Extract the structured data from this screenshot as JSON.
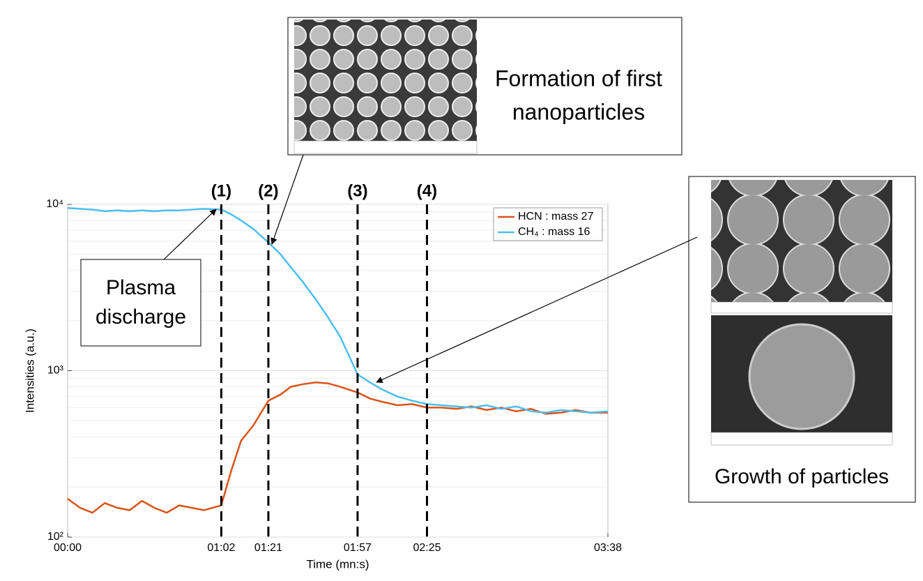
{
  "chart_data": {
    "type": "line",
    "ylog": true,
    "grid": true,
    "legend": "upper right",
    "xlabel": "Time (mn:s)",
    "ylabel": "Intensities (a.u.)",
    "xlim": [
      0,
      218
    ],
    "ylim": [
      100,
      10000
    ],
    "xticks": [
      {
        "value": 0,
        "label": "00:00"
      },
      {
        "value": 62,
        "label": "01:02"
      },
      {
        "value": 81,
        "label": "01:21"
      },
      {
        "value": 117,
        "label": "01:57"
      },
      {
        "value": 145,
        "label": "02:25"
      },
      {
        "value": 218,
        "label": "03:38"
      }
    ],
    "yticks": [
      {
        "value": 100,
        "label": "10²"
      },
      {
        "value": 1000,
        "label": "10³"
      },
      {
        "value": 10000,
        "label": "10⁴"
      }
    ],
    "x": [
      0,
      5,
      10,
      15,
      20,
      25,
      30,
      35,
      40,
      45,
      50,
      55,
      62,
      66,
      70,
      75,
      81,
      86,
      90,
      95,
      100,
      105,
      110,
      117,
      122,
      127,
      133,
      139,
      145,
      151,
      157,
      163,
      169,
      175,
      181,
      187,
      193,
      199,
      205,
      211,
      218
    ],
    "series": [
      {
        "name": "HCN : mass 27",
        "color": "#d95319",
        "values": [
          170,
          150,
          140,
          160,
          150,
          145,
          165,
          150,
          140,
          155,
          150,
          145,
          155,
          250,
          380,
          470,
          660,
          720,
          800,
          830,
          850,
          840,
          800,
          740,
          680,
          650,
          620,
          630,
          600,
          600,
          590,
          610,
          580,
          600,
          570,
          590,
          550,
          560,
          580,
          560,
          560
        ]
      },
      {
        "name": "CH₄ : mass 16",
        "color": "#4dbeee",
        "values": [
          9500,
          9400,
          9300,
          9100,
          9200,
          9100,
          9200,
          9100,
          9200,
          9200,
          9300,
          9400,
          9300,
          8700,
          8000,
          7100,
          5900,
          5000,
          4200,
          3400,
          2700,
          2100,
          1600,
          950,
          850,
          770,
          700,
          660,
          630,
          620,
          610,
          600,
          620,
          590,
          610,
          570,
          560,
          580,
          570,
          560,
          570
        ]
      }
    ],
    "events": [
      {
        "x": 62,
        "label": "(1)"
      },
      {
        "x": 81,
        "label": "(2)"
      },
      {
        "x": 117,
        "label": "(3)"
      },
      {
        "x": 145,
        "label": "(4)"
      }
    ],
    "annotations": [
      "Plasma discharge",
      "Formation of first nanoparticles",
      "Growth of particles"
    ]
  }
}
